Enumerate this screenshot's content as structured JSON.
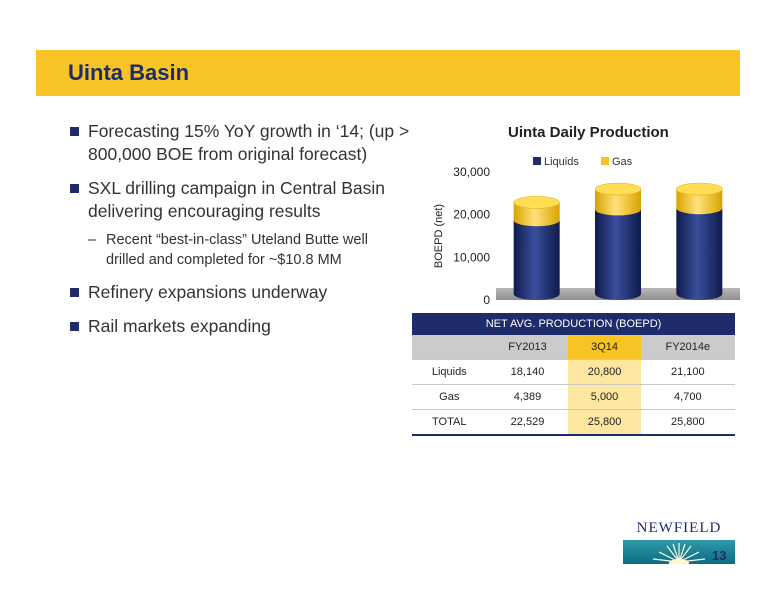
{
  "slide": {
    "title": "Uinta Basin",
    "page_number": "13",
    "logo_text": "NEWFIELD"
  },
  "bullets": [
    {
      "level": 1,
      "text": "Forecasting 15% YoY growth in ‘14; (up > 800,000 BOE from original forecast)"
    },
    {
      "level": 1,
      "text": "SXL drilling campaign in Central Basin delivering encouraging results"
    },
    {
      "level": 2,
      "text": "Recent “best-in-class” Uteland Butte well drilled and completed for ~$10.8 MM"
    },
    {
      "level": 1,
      "text": "Refinery expansions underway"
    },
    {
      "level": 1,
      "text": "Rail markets expanding"
    }
  ],
  "chart_data": {
    "type": "bar",
    "stacked": true,
    "title": "Uinta Daily Production",
    "ylabel": "BOEPD (net)",
    "xlabel": "",
    "categories": [
      "FY2013",
      "3Q14",
      "FY2014e"
    ],
    "series": [
      {
        "name": "Liquids",
        "values": [
          18140,
          20800,
          21100
        ],
        "color": "#1f2c6b"
      },
      {
        "name": "Gas",
        "values": [
          4389,
          5000,
          4700
        ],
        "color": "#f7c325"
      }
    ],
    "ylim": [
      0,
      30000
    ],
    "yticks": [
      "0",
      "10,000",
      "20,000",
      "30,000"
    ],
    "ytick_values": [
      0,
      10000,
      20000,
      30000
    ],
    "legend": "top",
    "show_category_labels": false
  },
  "table": {
    "title": "NET AVG. PRODUCTION  (BOEPD)",
    "columns": [
      "",
      "FY2013",
      "3Q14",
      "FY2014e"
    ],
    "rows": [
      [
        "Liquids",
        "18,140",
        "20,800",
        "21,100"
      ],
      [
        "Gas",
        "4,389",
        "5,000",
        "4,700"
      ],
      [
        "TOTAL",
        "22,529",
        "25,800",
        "25,800"
      ]
    ]
  }
}
